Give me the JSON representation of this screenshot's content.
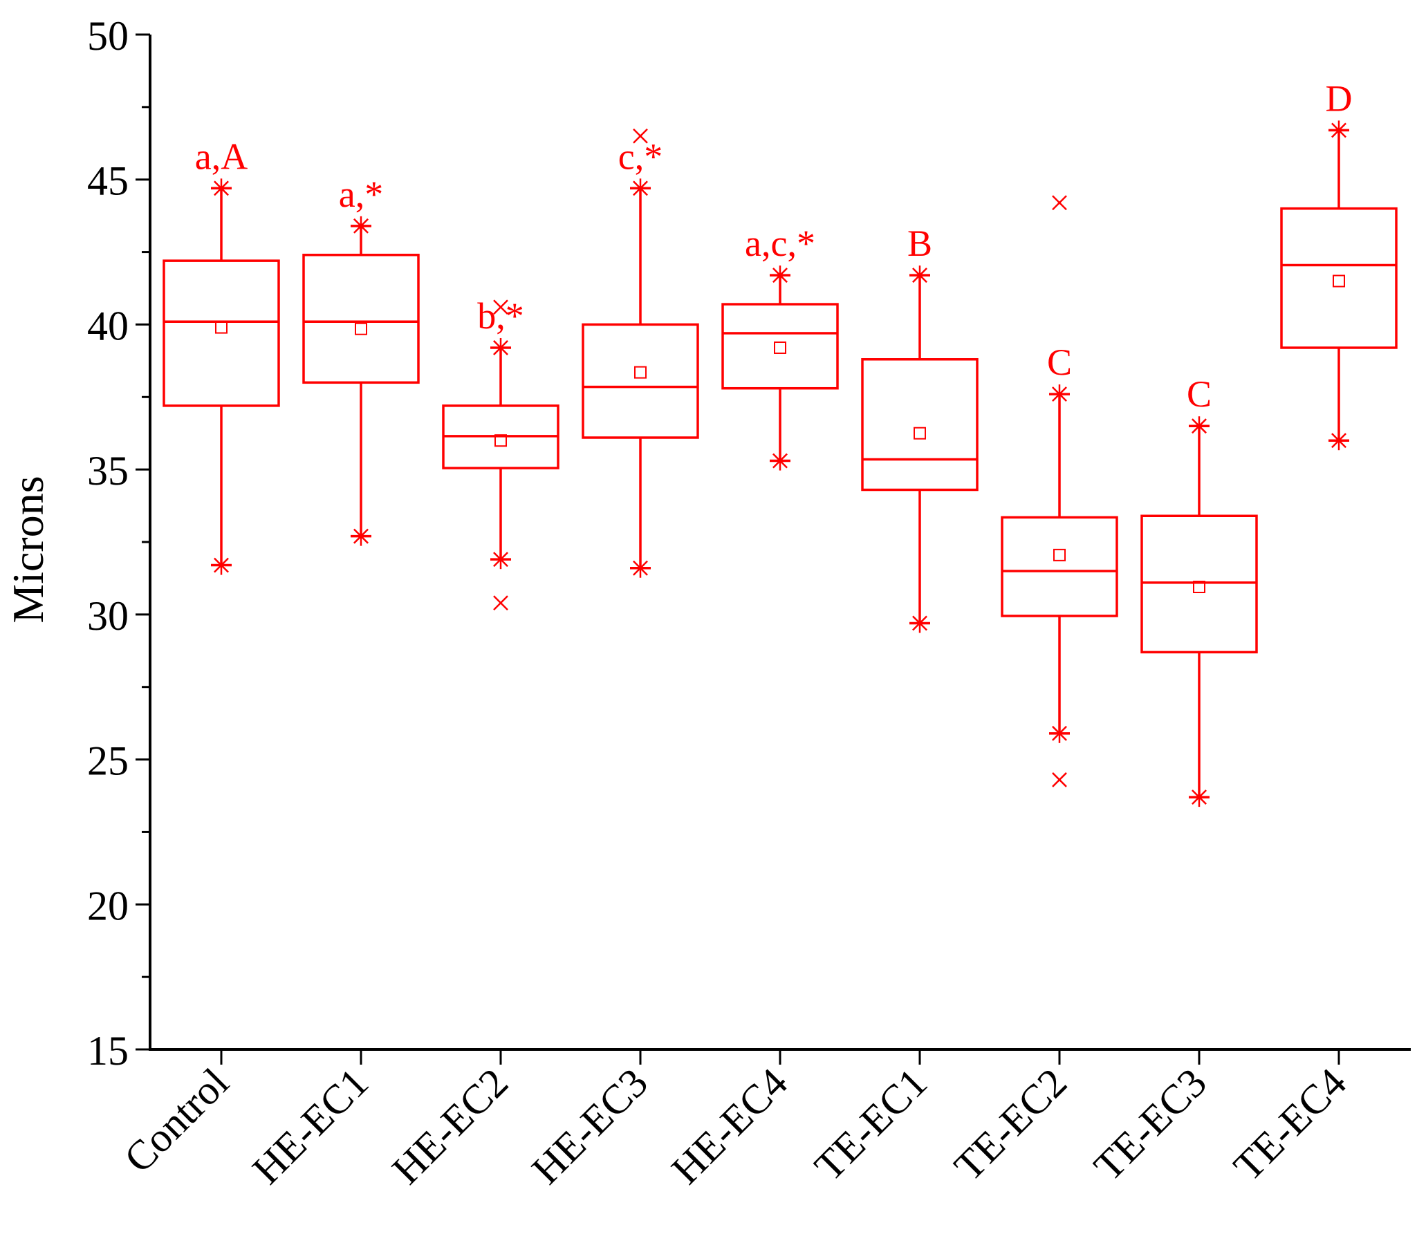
{
  "chart_data": {
    "type": "box",
    "title": "",
    "xlabel": "",
    "ylabel": "Microns",
    "ylim": [
      15,
      50
    ],
    "yticks": [
      15,
      20,
      25,
      30,
      35,
      40,
      45,
      50
    ],
    "grid": false,
    "color": "#ff0000",
    "categories": [
      "Control",
      "HE-EC1",
      "HE-EC2",
      "HE-EC3",
      "HE-EC4",
      "TE-EC1",
      "TE-EC2",
      "TE-EC3",
      "TE-EC4"
    ],
    "boxes": [
      {
        "label": "Control",
        "min": 31.7,
        "q1": 37.2,
        "median": 40.1,
        "q3": 42.2,
        "max": 44.7,
        "mean": 39.9,
        "outliers": [],
        "annotation": "a,A"
      },
      {
        "label": "HE-EC1",
        "min": 32.7,
        "q1": 38.0,
        "median": 40.1,
        "q3": 42.4,
        "max": 43.4,
        "mean": 39.85,
        "outliers": [],
        "annotation": "a,*"
      },
      {
        "label": "HE-EC2",
        "min": 31.9,
        "q1": 35.05,
        "median": 36.15,
        "q3": 37.2,
        "max": 39.2,
        "mean": 36.0,
        "outliers": [
          40.6,
          30.4
        ],
        "annotation": "b,*"
      },
      {
        "label": "HE-EC3",
        "min": 31.6,
        "q1": 36.1,
        "median": 37.85,
        "q3": 40.0,
        "max": 44.7,
        "mean": 38.35,
        "outliers": [
          46.5
        ],
        "annotation": "c,*"
      },
      {
        "label": "HE-EC4",
        "min": 35.3,
        "q1": 37.8,
        "median": 39.7,
        "q3": 40.7,
        "max": 41.7,
        "mean": 39.2,
        "outliers": [],
        "annotation": "a,c,*"
      },
      {
        "label": "TE-EC1",
        "min": 29.7,
        "q1": 34.3,
        "median": 35.35,
        "q3": 38.8,
        "max": 41.7,
        "mean": 36.25,
        "outliers": [],
        "annotation": "B"
      },
      {
        "label": "TE-EC2",
        "min": 25.9,
        "q1": 29.95,
        "median": 31.5,
        "q3": 33.35,
        "max": 37.6,
        "mean": 32.05,
        "outliers": [
          44.2,
          24.3
        ],
        "annotation": "C"
      },
      {
        "label": "TE-EC3",
        "min": 23.7,
        "q1": 28.7,
        "median": 31.1,
        "q3": 33.4,
        "max": 36.5,
        "mean": 30.95,
        "outliers": [],
        "annotation": "C"
      },
      {
        "label": "TE-EC4",
        "min": 36.0,
        "q1": 39.2,
        "median": 42.05,
        "q3": 44.0,
        "max": 46.7,
        "mean": 41.5,
        "outliers": [],
        "annotation": "D"
      }
    ]
  }
}
